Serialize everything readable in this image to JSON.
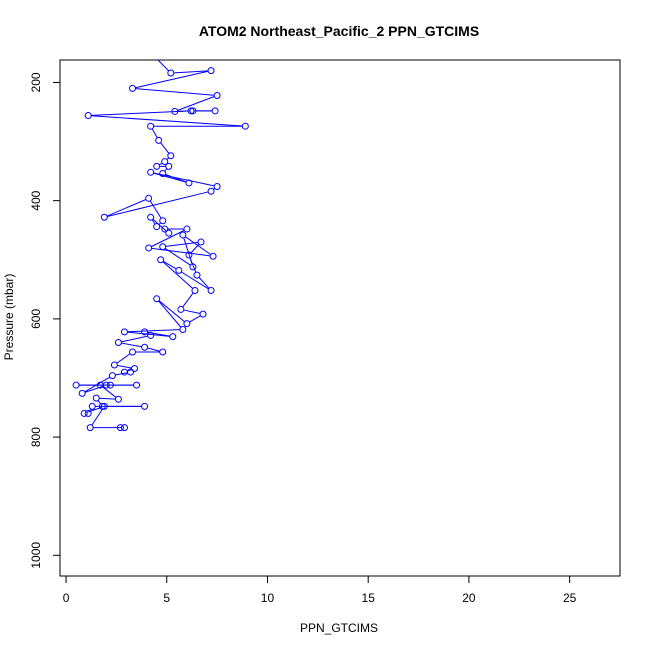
{
  "chart_data": {
    "type": "line",
    "title": "ATOM2 Northeast_Pacific_2 PPN_GTCIMS",
    "xlabel": "PPN_GTCIMS",
    "ylabel": "Pressure (mbar)",
    "xlim": [
      -0.3,
      27.5
    ],
    "ylim": [
      1035,
      162
    ],
    "y_reversed": true,
    "grid": false,
    "x_ticks": [
      0,
      5,
      10,
      15,
      20,
      25
    ],
    "y_ticks": [
      200,
      400,
      600,
      800,
      1000
    ],
    "series": [
      {
        "color": "#0000ff",
        "marker": "open-circle",
        "x": [
          2.7,
          2.9,
          1.2,
          1.9,
          0.9,
          1.1,
          1.3,
          3.9,
          1.8,
          1.5,
          2.6,
          1.7,
          2.2,
          3.5,
          0.5,
          2.0,
          0.8,
          2.3,
          3.2,
          2.9,
          3.4,
          2.4,
          3.3,
          4.8,
          3.9,
          2.6,
          4.2,
          3.9,
          5.3,
          2.9,
          5.8,
          4.5,
          6.0,
          6.8,
          5.7,
          6.4,
          4.7,
          5.6,
          7.2,
          6.5,
          6.1,
          6.7,
          4.8,
          6.3,
          5.8,
          7.3,
          4.1,
          6.0,
          4.9,
          5.1,
          4.2,
          4.5,
          4.8,
          4.1,
          1.9,
          7.2,
          7.5,
          4.2,
          6.1,
          4.8,
          5.1,
          4.5,
          4.9,
          5.2,
          4.6,
          4.2,
          8.9,
          1.1,
          6.2,
          7.4,
          6.3,
          5.4,
          7.5,
          3.3,
          7.2,
          5.2,
          4.1
        ],
        "y": [
          784,
          784,
          784,
          748,
          760,
          760,
          748,
          748,
          748,
          734,
          736,
          712,
          712,
          712,
          712,
          712,
          726,
          696,
          690,
          690,
          684,
          678,
          656,
          656,
          648,
          640,
          628,
          622,
          630,
          622,
          618,
          566,
          608,
          592,
          584,
          552,
          500,
          518,
          552,
          526,
          492,
          470,
          478,
          512,
          458,
          494,
          480,
          448,
          448,
          455,
          428,
          444,
          434,
          396,
          428,
          384,
          376,
          352,
          370,
          354,
          342,
          342,
          334,
          324,
          298,
          274,
          274,
          256,
          248,
          248,
          248,
          249,
          222,
          210,
          180,
          184,
          146
        ]
      }
    ]
  }
}
